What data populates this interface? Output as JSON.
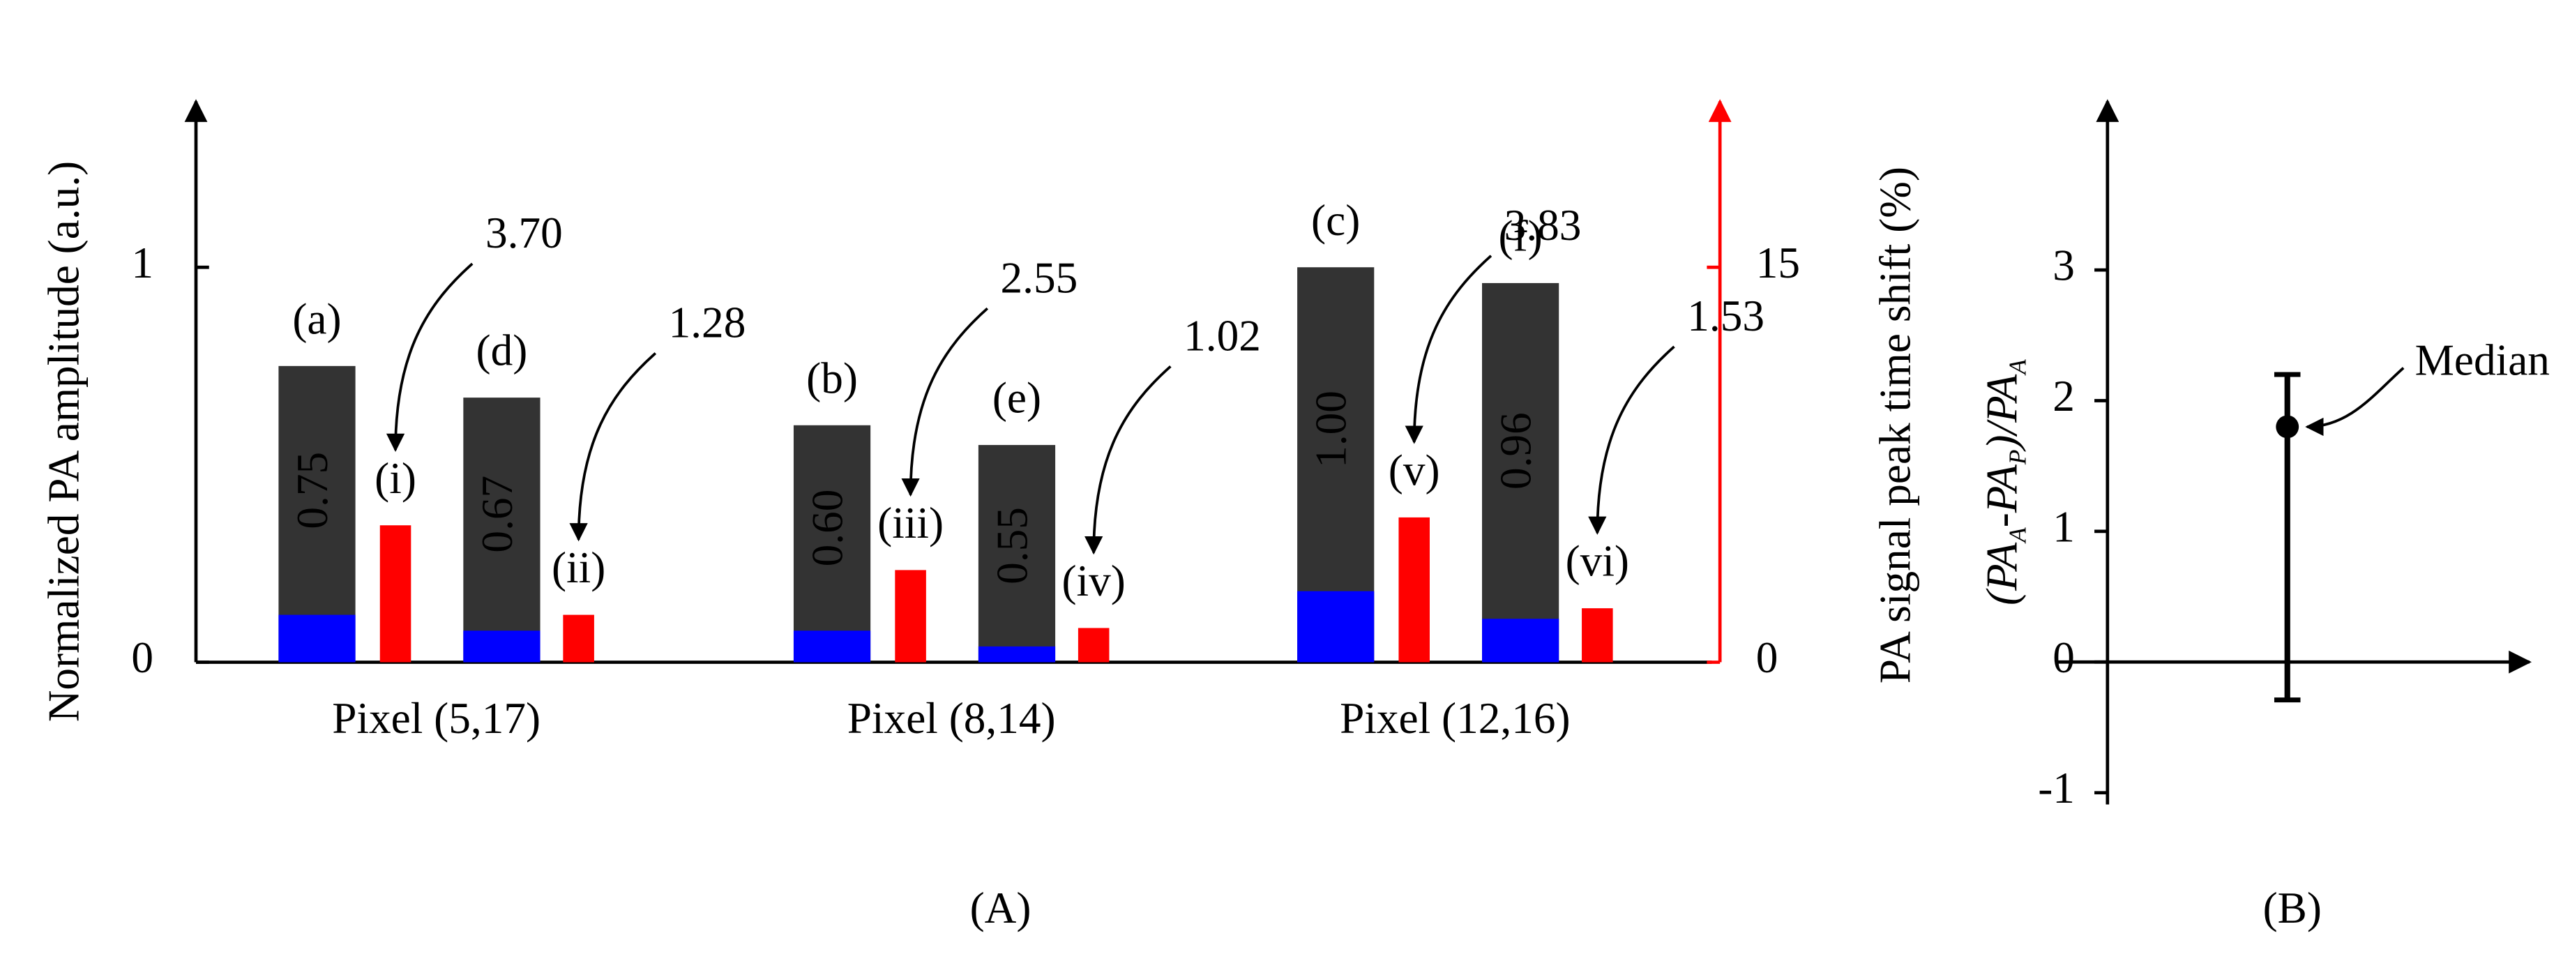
{
  "chart_data": [
    {
      "type": "bar",
      "panel": "(A)",
      "ylabel": "Normalized PA amplitude (a.u.)",
      "y2label": "PA signal peak time shift (%)",
      "categories": [
        "Pixel (5,17)",
        "Pixel (8,14)",
        "Pixel (12,16)"
      ],
      "series": [
        {
          "color": "#333333",
          "values": [
            0.75,
            0.6,
            1
          ],
          "value_labels": [
            "0.75",
            "0.60",
            "1.00"
          ],
          "labels": [
            "(a)",
            "(b)",
            "(c)"
          ]
        },
        {
          "color": "#0000ff",
          "values": [
            0.12,
            0.08,
            0.18
          ]
        },
        {
          "color": "#ff0000",
          "axis": "y2",
          "values": [
            5.2,
            3.5,
            5.5
          ],
          "labels": [
            "(i)",
            "(iii)",
            "(v)"
          ],
          "annotations": [
            "3.70",
            "2.55",
            "3.83"
          ]
        },
        {
          "color": "#333333",
          "values": [
            0.67,
            0.55,
            0.96
          ],
          "value_labels": [
            "0.67",
            "0.55",
            "0.96"
          ],
          "labels": [
            "(d)",
            "(e)",
            "(f)"
          ]
        },
        {
          "color": "#0000ff",
          "values": [
            0.08,
            0.04,
            0.11
          ]
        },
        {
          "color": "#ff0000",
          "axis": "y2",
          "values": [
            1.8,
            1.3,
            2.05
          ],
          "labels": [
            "(ii)",
            "(iv)",
            "(vi)"
          ],
          "annotations": [
            "1.28",
            "1.02",
            "1.53"
          ]
        }
      ],
      "ylim": [
        0,
        1.42
      ],
      "yticks": [
        0,
        1
      ],
      "y2lim": [
        0,
        21.3
      ],
      "y2ticks": [
        0,
        15
      ],
      "y2color": "#ff0000"
    },
    {
      "type": "errorbar",
      "panel": "(B)",
      "ylabel": [
        "(PA",
        "A",
        "-PA",
        "P",
        ")/PA",
        "A"
      ],
      "series": [
        {
          "color": "#000000",
          "values": [
            1.8
          ],
          "lower": [
            -0.29
          ],
          "upper": [
            2.2
          ]
        }
      ],
      "annotation": "Median",
      "ylim": [
        -1.09,
        4.29
      ],
      "yticks": [
        -1,
        0,
        1,
        2,
        3
      ]
    }
  ]
}
